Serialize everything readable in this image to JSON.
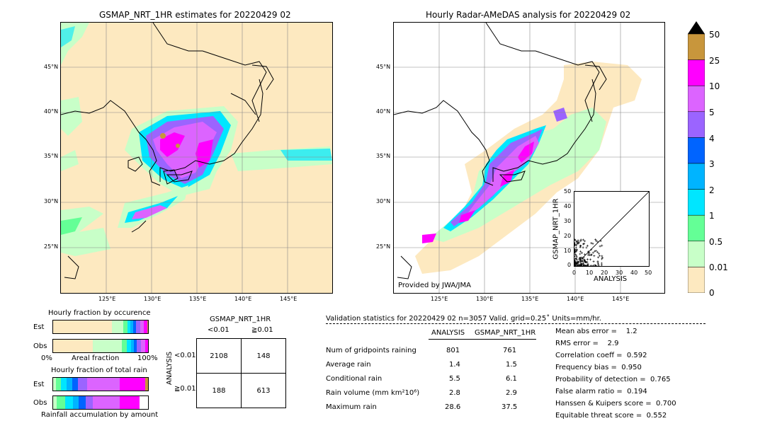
{
  "left_map": {
    "title": "GSMAP_NRT_1HR estimates for 20220429 02",
    "lat_labels": [
      "45°N",
      "40°N",
      "35°N",
      "30°N",
      "25°N"
    ],
    "lon_labels": [
      "125°E",
      "130°E",
      "135°E",
      "140°E",
      "145°E"
    ]
  },
  "right_map": {
    "title": "Hourly Radar-AMeDAS analysis for 20220429 02",
    "lat_labels": [
      "45°N",
      "40°N",
      "35°N",
      "30°N",
      "25°N"
    ],
    "lon_labels": [
      "125°E",
      "130°E",
      "135°E",
      "140°E",
      "145°E"
    ],
    "credit": "Provided by JWA/JMA"
  },
  "colorbar": {
    "labels": [
      "50",
      "25",
      "10",
      "5",
      "4",
      "3",
      "2",
      "1",
      "0.5",
      "0.01",
      "0"
    ],
    "colors": [
      "#c8963c",
      "#ff00ff",
      "#dc64ff",
      "#9b64ff",
      "#0064ff",
      "#00b4ff",
      "#00e6ff",
      "#64ff96",
      "#c8ffc8",
      "#fde9c0"
    ]
  },
  "scatter": {
    "ylabel": "GSMAP_NRT_1HR",
    "xlabel": "ANALYSIS",
    "ticks": [
      "0",
      "10",
      "20",
      "30",
      "40",
      "50"
    ]
  },
  "fraction_occurrence": {
    "title": "Hourly fraction by occurence",
    "rows": [
      "Est",
      "Obs"
    ],
    "axis_left": "0%",
    "axis_mid": "Areal fraction",
    "axis_right": "100%"
  },
  "fraction_total": {
    "title": "Hourly fraction of total rain",
    "rows": [
      "Est",
      "Obs"
    ],
    "footer": "Rainfall accumulation by amount"
  },
  "contingency": {
    "title": "GSMAP_NRT_1HR",
    "col_headers": [
      "<0.01",
      "≧0.01"
    ],
    "row_axis": "ANALYSIS",
    "row_headers": [
      "<0.01",
      "≧0.01"
    ],
    "cells": [
      [
        "2108",
        "148"
      ],
      [
        "188",
        "613"
      ]
    ]
  },
  "validation": {
    "header": "Validation statistics for 20220429 02  n=3057 Valid. grid=0.25˚ Units=mm/hr.",
    "col_analysis": "ANALYSIS",
    "col_gsmap": "GSMAP_NRT_1HR",
    "rows": [
      {
        "label": "Num of gridpoints raining",
        "a": "801",
        "g": "761"
      },
      {
        "label": "Average rain",
        "a": "1.4",
        "g": "1.5"
      },
      {
        "label": "Conditional rain",
        "a": "5.5",
        "g": "6.1"
      },
      {
        "label": "Rain volume (mm km²10⁶)",
        "a": "2.8",
        "g": "2.9"
      },
      {
        "label": "Maximum rain",
        "a": "28.6",
        "g": "37.5"
      }
    ],
    "scores": [
      "Mean abs error =    1.2",
      "RMS error =    2.9",
      "Correlation coeff =  0.592",
      "Frequency bias =  0.950",
      "Probability of detection =  0.765",
      "False alarm ratio =  0.194",
      "Hanssen & Kuipers score =  0.700",
      "Equitable threat score =  0.552"
    ]
  },
  "chart_data": {
    "type": "table",
    "contingency": {
      "rows": [
        "<0.01",
        "≧0.01"
      ],
      "cols": [
        "<0.01",
        "≧0.01"
      ],
      "values": [
        [
          2108,
          148
        ],
        [
          188,
          613
        ]
      ]
    },
    "statistics": {
      "n": 3057,
      "num_gridpoints_raining": {
        "analysis": 801,
        "gsmap": 761
      },
      "average_rain": {
        "analysis": 1.4,
        "gsmap": 1.5
      },
      "conditional_rain": {
        "analysis": 5.5,
        "gsmap": 6.1
      },
      "rain_volume": {
        "analysis": 2.8,
        "gsmap": 2.9
      },
      "maximum_rain": {
        "analysis": 28.6,
        "gsmap": 37.5
      }
    }
  }
}
